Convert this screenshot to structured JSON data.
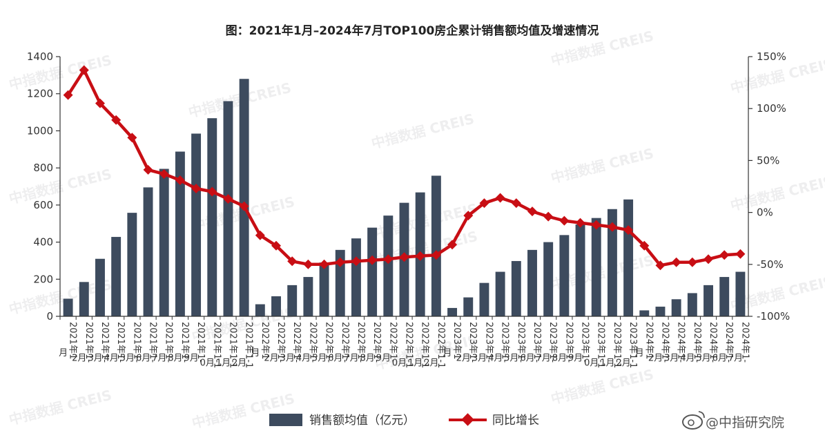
{
  "chart_data": {
    "type": "bar+line",
    "title": "图：2021年1月–2024年7月TOP100房企累计销售额均值及增速情况",
    "categories": [
      "2021年1月",
      "2021年1-2月",
      "2021年1-3月",
      "2021年1-4月",
      "2021年1-5月",
      "2021年1-6月",
      "2021年1-7月",
      "2021年1-8月",
      "2021年1-9月",
      "2021年1-10月",
      "2021年1-11月",
      "2021年1-12月",
      "2022年1月",
      "2022年1-2月",
      "2022年1-3月",
      "2022年1-4月",
      "2022年1-5月",
      "2022年1-6月",
      "2022年1-7月",
      "2022年1-8月",
      "2022年1-9月",
      "2022年1-10月",
      "2022年1-11月",
      "2022年1-12月",
      "2023年1月",
      "2023年1-2月",
      "2023年1-3月",
      "2023年1-4月",
      "2023年1-5月",
      "2023年1-6月",
      "2023年1-7月",
      "2023年1-8月",
      "2023年1-9月",
      "2023年1-10月",
      "2023年1-11月",
      "2023年1-12月",
      "2024年1月",
      "2024年1-2月",
      "2024年1-3月",
      "2024年1-4月",
      "2024年1-5月",
      "2024年1-6月",
      "2024年1-7月"
    ],
    "series": [
      {
        "name": "销售额均值（亿元）",
        "type": "bar",
        "axis": "left",
        "color": "#3d4b5e",
        "values": [
          95,
          185,
          310,
          428,
          558,
          695,
          795,
          888,
          985,
          1068,
          1160,
          1280,
          65,
          108,
          168,
          212,
          290,
          358,
          420,
          478,
          543,
          612,
          668,
          758,
          45,
          102,
          180,
          240,
          298,
          358,
          400,
          438,
          495,
          530,
          578,
          630,
          32,
          52,
          92,
          125,
          168,
          212,
          240
        ]
      },
      {
        "name": "同比增长",
        "type": "line",
        "axis": "right",
        "color": "#c80e14",
        "values": [
          113,
          137,
          105,
          89,
          72,
          41,
          37,
          31,
          23,
          20,
          13,
          6,
          -22,
          -32,
          -47,
          -50,
          -50,
          -48,
          -47,
          -46,
          -45,
          -43,
          -42,
          -41,
          -31,
          -3,
          9,
          14,
          9,
          1,
          -4,
          -8,
          -10,
          -12,
          -14,
          -17,
          -32,
          -51,
          -48,
          -48,
          -45,
          -41,
          -40
        ]
      }
    ],
    "y_left": {
      "min": 0,
      "max": 1400,
      "ticks": [
        0,
        200,
        400,
        600,
        800,
        1000,
        1200,
        1400
      ]
    },
    "y_right": {
      "min": -100,
      "max": 150,
      "ticks": [
        "-100%",
        "-50%",
        "0%",
        "50%",
        "100%",
        "150%"
      ]
    },
    "legend": {
      "position": "bottom-center",
      "items": [
        "销售额均值（亿元）",
        "同比增长"
      ]
    },
    "grid": false
  },
  "watermark": {
    "text": "中指数据 CREIS",
    "color": "#9a9aa0"
  },
  "corner_credit": "@中指研究院",
  "corner_icon": "weibo-icon"
}
